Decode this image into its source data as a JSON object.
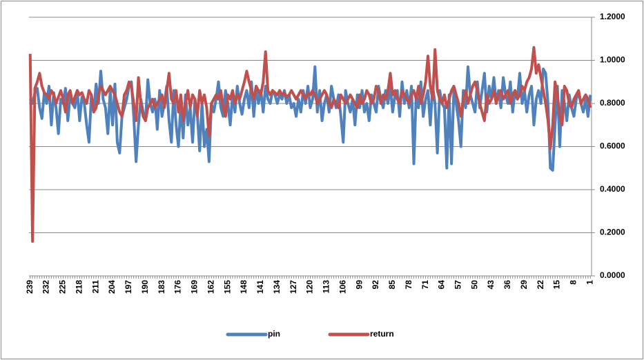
{
  "chart_data": {
    "type": "line",
    "categories": [
      239,
      null,
      null,
      null,
      null,
      null,
      null,
      232,
      null,
      null,
      null,
      null,
      null,
      null,
      225,
      null,
      null,
      null,
      null,
      null,
      null,
      218,
      null,
      null,
      null,
      null,
      null,
      null,
      211,
      null,
      null,
      null,
      null,
      null,
      null,
      204,
      null,
      null,
      null,
      null,
      null,
      null,
      197,
      null,
      null,
      null,
      null,
      null,
      null,
      190,
      null,
      null,
      null,
      null,
      null,
      null,
      183,
      null,
      null,
      null,
      null,
      null,
      null,
      176,
      null,
      null,
      null,
      null,
      null,
      null,
      169,
      null,
      null,
      null,
      null,
      null,
      null,
      162,
      null,
      null,
      null,
      null,
      null,
      null,
      155,
      null,
      null,
      null,
      null,
      null,
      null,
      148,
      null,
      null,
      null,
      null,
      null,
      null,
      141,
      null,
      null,
      null,
      null,
      null,
      null,
      134,
      null,
      null,
      null,
      null,
      null,
      null,
      127,
      null,
      null,
      null,
      null,
      null,
      null,
      120,
      null,
      null,
      null,
      null,
      null,
      null,
      113,
      null,
      null,
      null,
      null,
      null,
      null,
      106,
      null,
      null,
      null,
      null,
      null,
      null,
      99,
      null,
      null,
      null,
      null,
      null,
      null,
      92,
      null,
      null,
      null,
      null,
      null,
      null,
      85,
      null,
      null,
      null,
      null,
      null,
      null,
      78,
      null,
      null,
      null,
      null,
      null,
      null,
      71,
      null,
      null,
      null,
      null,
      null,
      null,
      64,
      null,
      null,
      null,
      null,
      null,
      null,
      57,
      null,
      null,
      null,
      null,
      null,
      null,
      50,
      null,
      null,
      null,
      null,
      null,
      null,
      43,
      null,
      null,
      null,
      null,
      null,
      null,
      36,
      null,
      null,
      null,
      null,
      null,
      null,
      29,
      null,
      null,
      null,
      null,
      null,
      null,
      22,
      null,
      null,
      null,
      null,
      null,
      null,
      15,
      null,
      null,
      null,
      null,
      null,
      null,
      8,
      null,
      null,
      null,
      null,
      null,
      null,
      1
    ],
    "series": [
      {
        "name": "pin",
        "color": "#4f81bd",
        "values": [
          0.82,
          0.8,
          0.85,
          0.87,
          0.78,
          0.73,
          0.85,
          0.8,
          0.88,
          0.7,
          0.85,
          0.78,
          0.66,
          0.82,
          0.8,
          0.87,
          0.72,
          0.84,
          0.8,
          0.78,
          0.86,
          0.72,
          0.83,
          0.8,
          0.7,
          0.62,
          0.84,
          0.76,
          0.89,
          0.8,
          0.95,
          0.82,
          0.78,
          0.66,
          0.86,
          0.7,
          0.89,
          0.62,
          0.57,
          0.74,
          0.78,
          0.82,
          0.88,
          0.9,
          0.74,
          0.53,
          0.7,
          0.82,
          0.76,
          0.72,
          0.91,
          0.8,
          0.76,
          0.82,
          0.68,
          0.86,
          0.74,
          0.8,
          0.88,
          0.72,
          0.62,
          0.86,
          0.7,
          0.6,
          0.8,
          0.64,
          0.84,
          0.7,
          0.78,
          0.62,
          0.82,
          0.75,
          0.58,
          0.8,
          0.6,
          0.68,
          0.53,
          0.8,
          0.76,
          0.82,
          0.9,
          0.78,
          0.74,
          0.86,
          0.8,
          0.7,
          0.84,
          0.76,
          0.88,
          0.8,
          0.75,
          0.82,
          0.86,
          0.78,
          0.9,
          0.74,
          0.88,
          0.8,
          0.86,
          0.76,
          0.88,
          0.82,
          0.8,
          0.86,
          0.84,
          0.8,
          0.84,
          0.82,
          0.86,
          0.8,
          0.84,
          0.78,
          0.8,
          0.74,
          0.82,
          0.76,
          0.86,
          0.8,
          0.88,
          0.78,
          0.82,
          0.97,
          0.76,
          0.86,
          0.72,
          0.8,
          0.84,
          0.76,
          0.88,
          0.82,
          0.78,
          0.84,
          0.74,
          0.62,
          0.86,
          0.8,
          0.76,
          0.82,
          0.7,
          0.84,
          0.78,
          0.86,
          0.76,
          0.8,
          0.72,
          0.84,
          0.8,
          0.76,
          0.88,
          0.82,
          0.78,
          0.86,
          0.8,
          0.88,
          0.76,
          0.84,
          0.86,
          0.74,
          0.9,
          0.8,
          0.86,
          0.78,
          0.88,
          0.52,
          0.84,
          0.78,
          0.9,
          0.74,
          0.82,
          0.86,
          0.7,
          0.88,
          0.8,
          0.57,
          0.86,
          0.8,
          0.78,
          0.5,
          0.84,
          0.52,
          0.86,
          0.8,
          0.72,
          0.6,
          0.86,
          0.78,
          0.97,
          0.84,
          0.8,
          0.76,
          0.9,
          0.78,
          0.86,
          0.94,
          0.76,
          0.88,
          0.82,
          0.92,
          0.8,
          0.86,
          0.78,
          0.92,
          0.84,
          0.8,
          0.9,
          0.76,
          0.86,
          0.82,
          0.94,
          0.8,
          0.86,
          0.76,
          0.84,
          0.88,
          0.7,
          0.82,
          0.86,
          0.8,
          0.96,
          0.94,
          0.8,
          0.5,
          0.49,
          0.7,
          0.88,
          0.6,
          0.86,
          0.8,
          0.72,
          0.84,
          0.78,
          0.74,
          0.82,
          0.85,
          0.8,
          0.76,
          0.82,
          0.74,
          0.84
        ]
      },
      {
        "name": "return",
        "color": "#c0504d",
        "values": [
          1.03,
          0.16,
          0.87,
          0.9,
          0.94,
          0.88,
          0.85,
          0.84,
          0.82,
          0.86,
          0.84,
          0.8,
          0.83,
          0.86,
          0.82,
          0.76,
          0.84,
          0.86,
          0.8,
          0.83,
          0.86,
          0.84,
          0.85,
          0.82,
          0.8,
          0.86,
          0.84,
          0.76,
          0.78,
          0.84,
          0.88,
          0.86,
          0.84,
          0.86,
          0.88,
          0.86,
          0.84,
          0.8,
          0.76,
          0.74,
          0.84,
          0.86,
          0.9,
          0.88,
          0.8,
          0.72,
          0.92,
          0.8,
          0.74,
          0.72,
          0.78,
          0.8,
          0.82,
          0.78,
          0.8,
          0.82,
          0.84,
          0.78,
          0.86,
          0.94,
          0.82,
          0.8,
          0.86,
          0.76,
          0.84,
          0.72,
          0.8,
          0.86,
          0.78,
          0.84,
          0.82,
          0.74,
          0.86,
          0.8,
          0.84,
          0.78,
          0.65,
          0.8,
          0.82,
          0.84,
          0.82,
          0.86,
          0.78,
          0.74,
          0.84,
          0.82,
          0.86,
          0.8,
          0.84,
          0.82,
          0.86,
          0.9,
          0.95,
          0.9,
          0.86,
          0.82,
          0.88,
          0.86,
          0.84,
          0.9,
          1.04,
          0.86,
          0.84,
          0.86,
          0.85,
          0.84,
          0.86,
          0.84,
          0.85,
          0.83,
          0.84,
          0.86,
          0.84,
          0.82,
          0.84,
          0.86,
          0.84,
          0.82,
          0.85,
          0.84,
          0.86,
          0.84,
          0.8,
          0.82,
          0.84,
          0.86,
          0.84,
          0.8,
          0.78,
          0.82,
          0.8,
          0.78,
          0.84,
          0.82,
          0.8,
          0.82,
          0.84,
          0.82,
          0.8,
          0.78,
          0.84,
          0.8,
          0.82,
          0.86,
          0.84,
          0.8,
          0.82,
          0.88,
          0.86,
          0.8,
          0.84,
          0.82,
          0.86,
          0.94,
          0.84,
          0.86,
          0.82,
          0.8,
          0.86,
          0.84,
          0.82,
          0.8,
          0.84,
          0.86,
          0.82,
          0.88,
          0.8,
          0.84,
          0.9,
          1.02,
          0.88,
          0.82,
          1.05,
          0.86,
          0.82,
          0.8,
          0.84,
          0.78,
          0.82,
          0.86,
          0.88,
          0.84,
          0.8,
          0.74,
          0.82,
          0.86,
          0.8,
          0.84,
          0.88,
          0.9,
          0.86,
          0.8,
          0.76,
          0.72,
          0.84,
          0.8,
          0.82,
          0.86,
          0.8,
          0.84,
          0.86,
          0.82,
          0.84,
          0.86,
          0.8,
          0.84,
          0.86,
          0.82,
          0.84,
          0.88,
          0.86,
          0.9,
          0.92,
          0.96,
          1.06,
          0.94,
          0.98,
          0.92,
          0.86,
          0.8,
          0.72,
          0.59,
          0.7,
          0.9,
          0.84,
          0.74,
          0.7,
          0.88,
          0.86,
          0.8,
          0.78,
          0.82,
          0.84,
          0.86,
          0.8,
          0.82,
          0.84,
          0.82,
          0.78
        ]
      }
    ],
    "ylim": [
      0,
      1.2
    ],
    "yticks": [
      {
        "value": 0,
        "label": "0.0000"
      },
      {
        "value": 0.2,
        "label": "0.2000"
      },
      {
        "value": 0.4,
        "label": "0.4000"
      },
      {
        "value": 0.6,
        "label": "0.6000"
      },
      {
        "value": 0.8,
        "label": "0.8000"
      },
      {
        "value": 1,
        "label": "1.0000"
      },
      {
        "value": 1.2,
        "label": "1.2000"
      }
    ],
    "grid": true,
    "legend": "bottom"
  }
}
